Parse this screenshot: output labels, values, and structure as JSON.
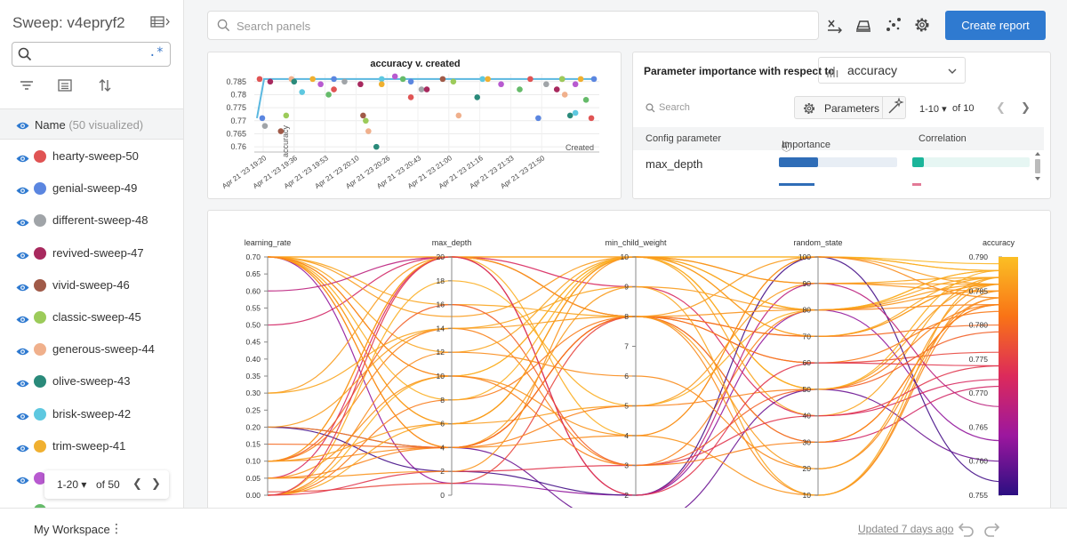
{
  "sidebar": {
    "title": "Sweep: v4epryf2",
    "search": {
      "value": "",
      "regex_label": ".*"
    },
    "list_header": {
      "label": "Name",
      "count": "(50 visualized)"
    },
    "runs": [
      {
        "name": "hearty-sweep-50",
        "color": "#e05454"
      },
      {
        "name": "genial-sweep-49",
        "color": "#5b86e0"
      },
      {
        "name": "different-sweep-48",
        "color": "#a0a4a8"
      },
      {
        "name": "revived-sweep-47",
        "color": "#a8295e"
      },
      {
        "name": "vivid-sweep-46",
        "color": "#a05a48"
      },
      {
        "name": "classic-sweep-45",
        "color": "#9ccb5a"
      },
      {
        "name": "generous-sweep-44",
        "color": "#f0b08c"
      },
      {
        "name": "olive-sweep-43",
        "color": "#2a8a7a"
      },
      {
        "name": "brisk-sweep-42",
        "color": "#5ec8e0"
      },
      {
        "name": "trim-sweep-41",
        "color": "#f0b030"
      },
      {
        "name": "",
        "color": "#b85ad0"
      },
      {
        "name": "",
        "color": "#66bb6a"
      }
    ],
    "pager": {
      "range": "1-20",
      "of": "of 50"
    }
  },
  "toolbar": {
    "search_placeholder": "Search panels",
    "create_report": "Create report"
  },
  "scatter": {
    "title": "accuracy v. created",
    "ylabel": "accuracy",
    "xlabel": "Created",
    "yticks": [
      "0.785",
      "0.78",
      "0.775",
      "0.77",
      "0.765",
      "0.76"
    ],
    "xticks": [
      "Apr 21 '23 19:20",
      "Apr 21 '23 19:36",
      "Apr 21 '23 19:53",
      "Apr 21 '23 20:10",
      "Apr 21 '23 20:26",
      "Apr 21 '23 20:43",
      "Apr 21 '23 21:00",
      "Apr 21 '23 21:16",
      "Apr 21 '23 21:33",
      "Apr 21 '23 21:50"
    ]
  },
  "importance": {
    "title": "Parameter importance with respect to",
    "metric": "accuracy",
    "search_placeholder": "Search",
    "params_button": "Parameters",
    "range": "1-10",
    "of": "of 10",
    "col_param": "Config parameter",
    "col_importance": "Importance",
    "col_correlation": "Correlation",
    "rows": [
      {
        "param": "max_depth",
        "importance": 0.33,
        "correlation": 0.1
      }
    ]
  },
  "parcoords": {
    "axes": [
      {
        "name": "learning_rate",
        "ticks": [
          "0.70",
          "0.65",
          "0.60",
          "0.55",
          "0.50",
          "0.45",
          "0.40",
          "0.35",
          "0.30",
          "0.25",
          "0.20",
          "0.15",
          "0.10",
          "0.05",
          "0.00"
        ]
      },
      {
        "name": "max_depth",
        "ticks": [
          "20",
          "18",
          "16",
          "14",
          "12",
          "10",
          "8",
          "6",
          "4",
          "2",
          "0"
        ]
      },
      {
        "name": "min_child_weight",
        "ticks": [
          "10",
          "9",
          "8",
          "7",
          "6",
          "5",
          "4",
          "3",
          "2"
        ]
      },
      {
        "name": "random_state",
        "ticks": [
          "100",
          "90",
          "80",
          "70",
          "60",
          "50",
          "40",
          "30",
          "20",
          "10"
        ]
      },
      {
        "name": "accuracy",
        "ticks": [
          "0.790",
          "0.785",
          "0.780",
          "0.775",
          "0.770",
          "0.765",
          "0.760",
          "0.755"
        ]
      }
    ],
    "colorscale": [
      "#fbbf24",
      "#f97316",
      "#dc2a5b",
      "#9c179e",
      "#2c0f82"
    ]
  },
  "chart_data": [
    {
      "type": "scatter",
      "title": "accuracy v. created",
      "xlabel": "Created",
      "ylabel": "accuracy",
      "ylim": [
        0.758,
        0.788
      ],
      "x_ticks": [
        "Apr 21 '23 19:20",
        "Apr 21 '23 19:36",
        "Apr 21 '23 19:53",
        "Apr 21 '23 20:10",
        "Apr 21 '23 20:26",
        "Apr 21 '23 20:43",
        "Apr 21 '23 21:00",
        "Apr 21 '23 21:16",
        "Apr 21 '23 21:33",
        "Apr 21 '23 21:50"
      ],
      "x_minutes_from_first_tick": [
        -2,
        -1,
        0,
        2,
        6,
        8,
        10,
        11,
        14,
        18,
        21,
        24,
        26,
        26,
        30,
        36,
        37,
        38,
        39,
        42,
        44,
        44,
        49,
        52,
        55,
        55,
        59,
        61,
        67,
        71,
        73,
        80,
        82,
        84,
        89,
        96,
        100,
        103,
        106,
        110,
        112,
        112,
        113,
        115,
        117,
        119,
        117,
        121,
        123,
        124
      ],
      "y": [
        0.786,
        0.771,
        0.768,
        0.785,
        0.766,
        0.772,
        0.786,
        0.785,
        0.781,
        0.786,
        0.784,
        0.78,
        0.782,
        0.786,
        0.785,
        0.784,
        0.772,
        0.77,
        0.766,
        0.76,
        0.786,
        0.784,
        0.787,
        0.786,
        0.779,
        0.785,
        0.782,
        0.782,
        0.786,
        0.785,
        0.772,
        0.779,
        0.786,
        0.786,
        0.784,
        0.782,
        0.786,
        0.771,
        0.784,
        0.782,
        0.786,
        0.786,
        0.78,
        0.772,
        0.773,
        0.786,
        0.784,
        0.778,
        0.771,
        0.786
      ],
      "best_line": [
        0.771,
        0.786
      ]
    },
    {
      "type": "parallel_coordinates",
      "dimensions": [
        "learning_rate",
        "max_depth",
        "min_child_weight",
        "random_state",
        "accuracy"
      ],
      "ranges": [
        [
          0,
          0.7
        ],
        [
          0,
          20
        ],
        [
          2,
          10
        ],
        [
          10,
          100
        ],
        [
          0.755,
          0.79
        ]
      ],
      "runs": [
        [
          0.7,
          20,
          10,
          100,
          0.789
        ],
        [
          0.7,
          1,
          2,
          80,
          0.763
        ],
        [
          0.5,
          20,
          8,
          30,
          0.771
        ],
        [
          0.7,
          6,
          10,
          90,
          0.787
        ],
        [
          0.1,
          4,
          8,
          10,
          0.784
        ],
        [
          0.7,
          15,
          10,
          70,
          0.786
        ],
        [
          0.05,
          20,
          9,
          40,
          0.772
        ],
        [
          0.1,
          14,
          3,
          80,
          0.783
        ],
        [
          0.0,
          10,
          10,
          100,
          0.788
        ],
        [
          0.2,
          4,
          1,
          50,
          0.76
        ],
        [
          0.7,
          6,
          5,
          90,
          0.786
        ],
        [
          0.01,
          1,
          8,
          60,
          0.776
        ],
        [
          0.1,
          20,
          4,
          100,
          0.788
        ],
        [
          0.2,
          4,
          8,
          30,
          0.783
        ],
        [
          0.7,
          12,
          10,
          40,
          0.787
        ],
        [
          0.0,
          18,
          5,
          80,
          0.788
        ],
        [
          0.7,
          16,
          8,
          70,
          0.787
        ],
        [
          0.05,
          10,
          4,
          10,
          0.785
        ],
        [
          0.7,
          4,
          9,
          80,
          0.786
        ],
        [
          0.3,
          20,
          10,
          50,
          0.786
        ],
        [
          0.2,
          2,
          2,
          100,
          0.757
        ],
        [
          0.0,
          8,
          8,
          60,
          0.782
        ],
        [
          0.7,
          10,
          10,
          80,
          0.788
        ],
        [
          0.05,
          4,
          5,
          50,
          0.783
        ],
        [
          0.6,
          20,
          2,
          90,
          0.768
        ],
        [
          0.0,
          6,
          10,
          80,
          0.787
        ],
        [
          0.1,
          16,
          3,
          50,
          0.779
        ],
        [
          0.15,
          4,
          8,
          70,
          0.78
        ],
        [
          0.7,
          20,
          8,
          100,
          0.786
        ],
        [
          0.0,
          12,
          6,
          20,
          0.784
        ],
        [
          0.3,
          14,
          9,
          10,
          0.787
        ],
        [
          0.0,
          2,
          3,
          40,
          0.774
        ],
        [
          0.7,
          8,
          10,
          50,
          0.788
        ],
        [
          0.1,
          20,
          8,
          80,
          0.785
        ],
        [
          0.7,
          4,
          4,
          100,
          0.784
        ],
        [
          0.0,
          20,
          2,
          60,
          0.774
        ],
        [
          0.1,
          6,
          10,
          70,
          0.786
        ],
        [
          0.7,
          10,
          3,
          30,
          0.783
        ],
        [
          0.05,
          2,
          10,
          90,
          0.785
        ],
        [
          0.2,
          14,
          8,
          20,
          0.786
        ]
      ]
    }
  ]
}
